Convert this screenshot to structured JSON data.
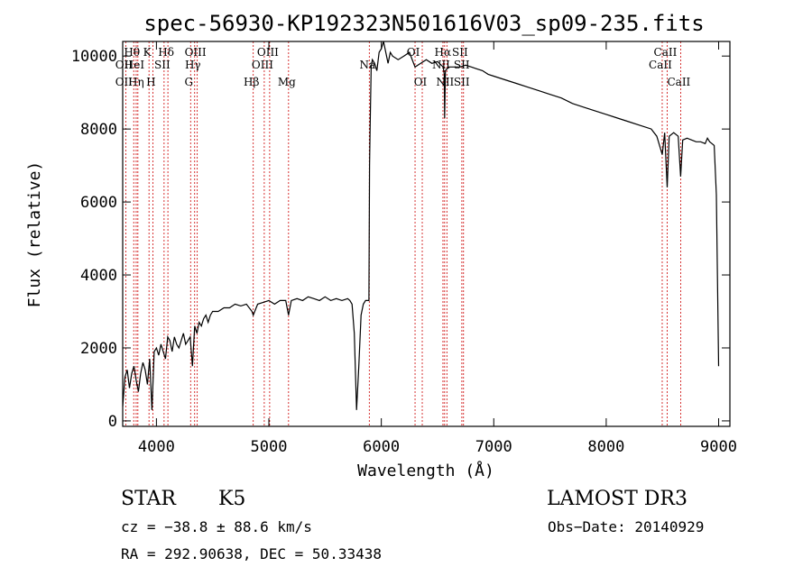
{
  "chart_data": {
    "type": "line",
    "title": "spec-56930-KP192323N501616V03_sp09-235.fits",
    "xlabel": "Wavelength (Å)",
    "ylabel": "Flux (relative)",
    "xlim": [
      3700,
      9100
    ],
    "ylim": [
      -150,
      10400
    ],
    "xticks": [
      4000,
      5000,
      6000,
      7000,
      8000,
      9000
    ],
    "yticks": [
      0,
      2000,
      4000,
      6000,
      8000,
      10000
    ],
    "series": [
      {
        "name": "flux",
        "x": [
          3700,
          3720,
          3740,
          3760,
          3780,
          3800,
          3820,
          3840,
          3860,
          3880,
          3900,
          3920,
          3940,
          3960,
          3980,
          4000,
          4020,
          4040,
          4060,
          4080,
          4100,
          4120,
          4140,
          4160,
          4180,
          4200,
          4220,
          4240,
          4260,
          4280,
          4300,
          4320,
          4340,
          4360,
          4380,
          4400,
          4420,
          4440,
          4460,
          4480,
          4500,
          4550,
          4600,
          4650,
          4700,
          4750,
          4800,
          4850,
          4861,
          4900,
          4950,
          5000,
          5050,
          5100,
          5150,
          5175,
          5200,
          5250,
          5300,
          5350,
          5400,
          5450,
          5500,
          5550,
          5600,
          5650,
          5700,
          5720,
          5740,
          5760,
          5780,
          5800,
          5820,
          5840,
          5860,
          5870,
          5880,
          5890,
          5895,
          5900,
          5910,
          5920,
          5940,
          5960,
          5980,
          6000,
          6020,
          6040,
          6060,
          6080,
          6100,
          6150,
          6200,
          6250,
          6300,
          6350,
          6400,
          6450,
          6500,
          6550,
          6560,
          6563,
          6570,
          6600,
          6650,
          6700,
          6750,
          6800,
          6850,
          6900,
          6950,
          7000,
          7100,
          7200,
          7300,
          7400,
          7500,
          7600,
          7700,
          7800,
          7900,
          8000,
          8100,
          8200,
          8300,
          8400,
          8450,
          8498,
          8520,
          8542,
          8560,
          8600,
          8640,
          8662,
          8680,
          8720,
          8760,
          8800,
          8840,
          8880,
          8900,
          8920,
          8940,
          8960,
          8980,
          9000
        ],
        "values": [
          400,
          1200,
          1400,
          900,
          1300,
          1500,
          1100,
          800,
          1300,
          1600,
          1400,
          1000,
          1700,
          300,
          1900,
          2000,
          1800,
          2100,
          1900,
          1700,
          2300,
          2200,
          1900,
          2300,
          2100,
          2000,
          2200,
          2400,
          2100,
          2200,
          2300,
          1500,
          2600,
          2400,
          2700,
          2600,
          2800,
          2900,
          2700,
          2900,
          3000,
          3000,
          3100,
          3100,
          3200,
          3150,
          3200,
          3000,
          2900,
          3200,
          3250,
          3300,
          3200,
          3300,
          3300,
          2900,
          3300,
          3350,
          3300,
          3400,
          3350,
          3300,
          3400,
          3300,
          3350,
          3300,
          3350,
          3300,
          3200,
          2400,
          300,
          1500,
          2900,
          3200,
          3300,
          3300,
          3300,
          3300,
          7000,
          8000,
          9700,
          9900,
          9800,
          9600,
          10100,
          10200,
          10400,
          10100,
          9800,
          10100,
          10000,
          9900,
          10000,
          10100,
          9700,
          9800,
          9900,
          9800,
          9850,
          9700,
          9500,
          8300,
          9600,
          9700,
          9700,
          9700,
          9750,
          9700,
          9650,
          9600,
          9500,
          9450,
          9350,
          9250,
          9150,
          9050,
          8950,
          8850,
          8700,
          8600,
          8500,
          8400,
          8300,
          8200,
          8100,
          8000,
          7800,
          7300,
          7900,
          6400,
          7800,
          7900,
          7800,
          6700,
          7700,
          7750,
          7700,
          7650,
          7650,
          7600,
          7750,
          7650,
          7600,
          7550,
          6200,
          1500
        ]
      }
    ],
    "lines": [
      {
        "label": "OII",
        "wl": 3727,
        "row": 2
      },
      {
        "label": "OII",
        "wl": 3727,
        "row": 3
      },
      {
        "label": "Hθ",
        "wl": 3798,
        "row": 1
      },
      {
        "label": "HeI",
        "wl": 3820,
        "row": 2
      },
      {
        "label": "Hη",
        "wl": 3835,
        "row": 3
      },
      {
        "label": "K",
        "wl": 3934,
        "row": 1
      },
      {
        "label": "H",
        "wl": 3968,
        "row": 3
      },
      {
        "label": "SII",
        "wl": 4068,
        "row": 2
      },
      {
        "label": "Hδ",
        "wl": 4102,
        "row": 1
      },
      {
        "label": "OIII",
        "wl": 4363,
        "row": 1
      },
      {
        "label": "Hγ",
        "wl": 4340,
        "row": 2
      },
      {
        "label": "G",
        "wl": 4304,
        "row": 3
      },
      {
        "label": "Hβ",
        "wl": 4861,
        "row": 3
      },
      {
        "label": "OIII",
        "wl": 4959,
        "row": 2
      },
      {
        "label": "OIII",
        "wl": 5007,
        "row": 1
      },
      {
        "label": "Mg",
        "wl": 5175,
        "row": 3
      },
      {
        "label": "Na",
        "wl": 5893,
        "row": 2
      },
      {
        "label": "OI",
        "wl": 6300,
        "row": 1
      },
      {
        "label": "OI",
        "wl": 6364,
        "row": 3
      },
      {
        "label": "Hα",
        "wl": 6563,
        "row": 1
      },
      {
        "label": "NII",
        "wl": 6548,
        "row": 2
      },
      {
        "label": "NII",
        "wl": 6583,
        "row": 3
      },
      {
        "label": "SII",
        "wl": 6716,
        "row": 1
      },
      {
        "label": "SII",
        "wl": 6731,
        "row": 2
      },
      {
        "label": "SII",
        "wl": 6731,
        "row": 3
      },
      {
        "label": "CaII",
        "wl": 8542,
        "row": 1
      },
      {
        "label": "CaII",
        "wl": 8498,
        "row": 2
      },
      {
        "label": "CaII",
        "wl": 8662,
        "row": 3
      }
    ]
  },
  "info": {
    "class": "STAR",
    "subclass": "K5",
    "survey": "LAMOST DR3",
    "cz": "cz = −38.8 ± 88.6 km/s",
    "obs_date": "Obs−Date: 20140929",
    "radec": "RA = 292.90638, DEC =  50.33438"
  },
  "colors": {
    "axis": "#000000",
    "spectrum": "#000000",
    "marker_line": "#cc0000"
  }
}
